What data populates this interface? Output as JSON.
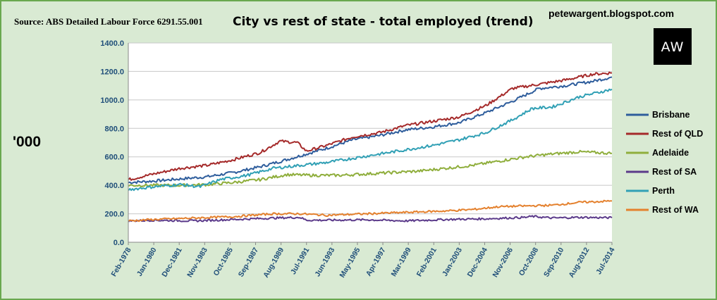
{
  "header": {
    "source": "Source: ABS Detailed Labour Force 6291.55.001",
    "title": "City vs rest of state - total employed (trend)",
    "blog": "petewargent.blogspot.com",
    "logo_text": "AW"
  },
  "chart_data": {
    "type": "line",
    "title": "City vs rest of state - total employed (trend)",
    "ylabel": "'000",
    "xlabel": "",
    "ylim": [
      0,
      1400
    ],
    "yticks": [
      0,
      200,
      400,
      600,
      800,
      1000,
      1200,
      1400
    ],
    "ytick_labels": [
      "0.0",
      "200.0",
      "400.0",
      "600.0",
      "800.0",
      "1000.0",
      "1200.0",
      "1400.0"
    ],
    "x_range": [
      1978.08,
      2014.5
    ],
    "xtick_labels": [
      "Feb-1978",
      "Jan-1980",
      "Dec-1981",
      "Nov-1983",
      "Oct-1985",
      "Sep-1987",
      "Aug-1989",
      "Jul-1991",
      "Jun-1993",
      "May-1995",
      "Apr-1997",
      "Mar-1999",
      "Feb-2001",
      "Jan-2003",
      "Dec-2004",
      "Nov-2006",
      "Oct-2008",
      "Sep-2010",
      "Aug-2012",
      "Jul-2014"
    ],
    "grid": true,
    "legend_position": "right",
    "series": [
      {
        "name": "Brisbane",
        "color": "#2e5d9c",
        "x": [
          1978.1,
          1980.0,
          1982.0,
          1984.0,
          1986.0,
          1988.0,
          1990.0,
          1991.5,
          1993.0,
          1995.0,
          1997.0,
          1999.0,
          2001.0,
          2003.0,
          2005.0,
          2007.0,
          2009.0,
          2011.0,
          2013.0,
          2014.5
        ],
        "values": [
          420,
          430,
          445,
          460,
          490,
          530,
          580,
          620,
          660,
          720,
          750,
          790,
          810,
          840,
          910,
          990,
          1080,
          1100,
          1130,
          1160
        ]
      },
      {
        "name": "Rest of QLD",
        "color": "#a52a2a",
        "x": [
          1978.1,
          1980.0,
          1982.0,
          1984.0,
          1986.0,
          1988.0,
          1989.5,
          1990.8,
          1991.5,
          1993.0,
          1995.0,
          1997.0,
          1999.0,
          2001.0,
          2003.0,
          2005.0,
          2007.0,
          2009.0,
          2011.0,
          2013.0,
          2014.5
        ],
        "values": [
          440,
          480,
          520,
          540,
          580,
          630,
          710,
          700,
          640,
          680,
          740,
          770,
          820,
          850,
          880,
          960,
          1080,
          1110,
          1140,
          1180,
          1190
        ]
      },
      {
        "name": "Adelaide",
        "color": "#8fae3c",
        "x": [
          1978.1,
          1980.0,
          1982.0,
          1984.0,
          1986.0,
          1988.0,
          1990.0,
          1992.0,
          1994.0,
          1996.0,
          1998.0,
          2000.0,
          2002.0,
          2004.0,
          2006.0,
          2008.0,
          2010.0,
          2012.0,
          2014.5
        ],
        "values": [
          400,
          400,
          400,
          405,
          420,
          440,
          475,
          470,
          470,
          480,
          490,
          500,
          520,
          540,
          570,
          600,
          620,
          635,
          625
        ]
      },
      {
        "name": "Rest of SA",
        "color": "#5b3a8a",
        "x": [
          1978.1,
          1980.0,
          1983.0,
          1986.0,
          1989.0,
          1991.0,
          1991.5,
          1993.0,
          1996.0,
          1999.0,
          2002.0,
          2005.0,
          2008.0,
          2008.5,
          2010.0,
          2012.0,
          2014.5
        ],
        "values": [
          150,
          155,
          150,
          160,
          170,
          175,
          155,
          155,
          158,
          150,
          160,
          165,
          175,
          182,
          170,
          175,
          172
        ]
      },
      {
        "name": "Perth",
        "color": "#31a0b5",
        "x": [
          1978.1,
          1980.0,
          1982.0,
          1983.5,
          1985.0,
          1987.0,
          1989.0,
          1991.0,
          1993.0,
          1995.0,
          1997.0,
          1999.0,
          2001.0,
          2003.0,
          2005.0,
          2007.0,
          2008.5,
          2010.0,
          2012.0,
          2014.5
        ],
        "values": [
          370,
          390,
          405,
          390,
          440,
          470,
          520,
          540,
          560,
          590,
          620,
          650,
          680,
          720,
          770,
          860,
          940,
          950,
          1020,
          1075
        ]
      },
      {
        "name": "Rest of WA",
        "color": "#e4812e",
        "x": [
          1978.1,
          1980.0,
          1983.0,
          1986.0,
          1989.0,
          1991.0,
          1993.0,
          1996.0,
          1999.0,
          2002.0,
          2004.0,
          2006.0,
          2008.0,
          2010.0,
          2012.0,
          2014.5
        ],
        "values": [
          150,
          160,
          170,
          180,
          200,
          200,
          190,
          200,
          210,
          220,
          230,
          250,
          255,
          260,
          280,
          290
        ]
      }
    ]
  }
}
